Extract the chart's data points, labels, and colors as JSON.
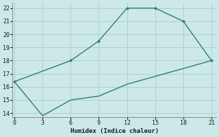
{
  "xlabel": "Humidex (Indice chaleur)",
  "background_color": "#cde8e8",
  "line_color": "#2e7d72",
  "grid_color": "#aed0d0",
  "upper_x": [
    0,
    6,
    9,
    12,
    15,
    18,
    21
  ],
  "upper_y": [
    16.4,
    18.0,
    19.5,
    22.0,
    22.0,
    21.0,
    18.0
  ],
  "lower_x": [
    0,
    3,
    6,
    9,
    12,
    15,
    18,
    21
  ],
  "lower_y": [
    16.4,
    13.8,
    15.0,
    15.3,
    16.2,
    16.8,
    17.4,
    18.0
  ],
  "xlim": [
    -0.2,
    21.5
  ],
  "ylim": [
    13.7,
    22.4
  ],
  "xticks": [
    0,
    3,
    6,
    9,
    12,
    15,
    18,
    21
  ],
  "yticks": [
    14,
    15,
    16,
    17,
    18,
    19,
    20,
    21,
    22
  ]
}
